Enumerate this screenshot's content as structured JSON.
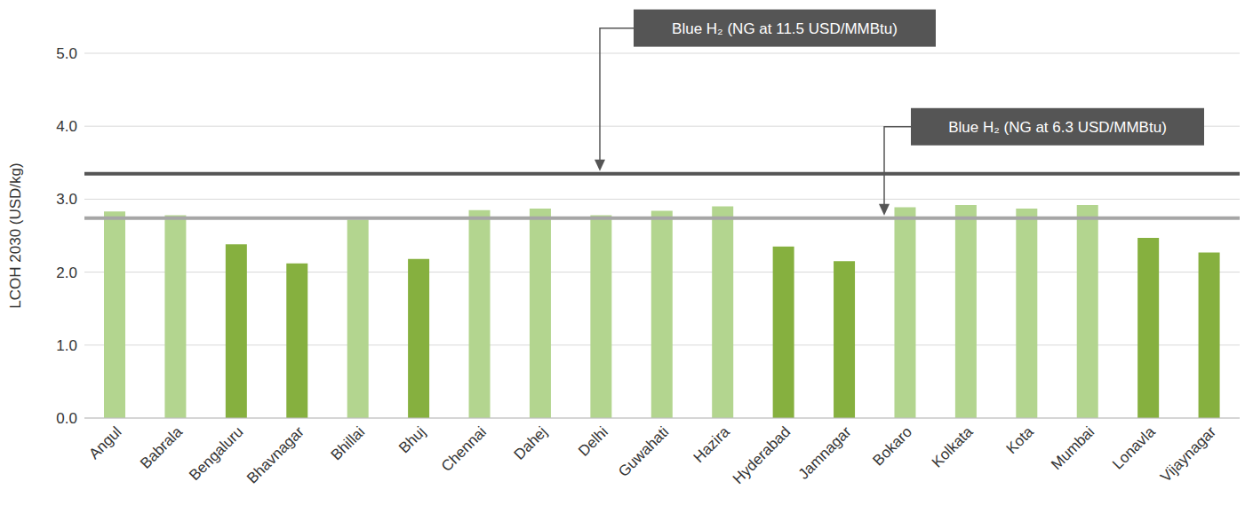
{
  "chart_data": {
    "type": "bar",
    "y_label": "LCOH 2030 (USD/kg)",
    "categories": [
      "Angul",
      "Babrala",
      "Bengaluru",
      "Bhavnagar",
      "Bhillai",
      "Bhuj",
      "Chennai",
      "Dahej",
      "Delhi",
      "Guwahati",
      "Hazira",
      "Hyderabad",
      "Jamnagar",
      "Bokaro",
      "Kolkata",
      "Kota",
      "Mumbai",
      "Lonavla",
      "Vijaynagar"
    ],
    "values": [
      2.83,
      2.78,
      2.38,
      2.12,
      2.72,
      2.18,
      2.85,
      2.87,
      2.78,
      2.84,
      2.9,
      2.35,
      2.15,
      2.89,
      2.92,
      2.87,
      2.92,
      2.47,
      2.27
    ],
    "colors": [
      "#b3d58f",
      "#b3d58f",
      "#86b03f",
      "#86b03f",
      "#b3d58f",
      "#86b03f",
      "#b3d58f",
      "#b3d58f",
      "#b3d58f",
      "#b3d58f",
      "#b3d58f",
      "#86b03f",
      "#86b03f",
      "#b3d58f",
      "#b3d58f",
      "#b3d58f",
      "#b3d58f",
      "#86b03f",
      "#86b03f"
    ],
    "ylim": [
      0,
      5
    ],
    "yticks": [
      {
        "value": 0,
        "label": "0.0"
      },
      {
        "value": 1,
        "label": "1.0"
      },
      {
        "value": 2,
        "label": "2.0"
      },
      {
        "value": 3,
        "label": "3.0"
      },
      {
        "value": 4,
        "label": "4.0"
      },
      {
        "value": 5,
        "label": "5.0"
      }
    ],
    "grid": true,
    "annotations": [
      {
        "label": "Blue H₂ (NG at 11.5 USD/MMBtu)",
        "value": 3.35,
        "color": "#555555"
      },
      {
        "label": "Blue H₂ (NG at 6.3 USD/MMBtu)",
        "value": 2.74,
        "color": "#a6a6a6"
      }
    ]
  }
}
